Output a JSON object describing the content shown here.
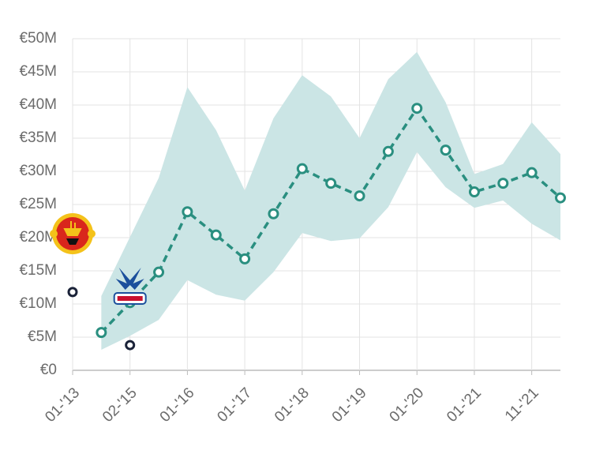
{
  "chart_data": {
    "type": "line",
    "categories": [
      "01-'13",
      null,
      "02-'15",
      null,
      "01-'16",
      null,
      "01-'17",
      null,
      "01-'18",
      null,
      "01-'19",
      null,
      "01-'20",
      null,
      "01-'21",
      null,
      "11-'21",
      null
    ],
    "ylim": [
      0,
      50
    ],
    "yticks": [
      {
        "value": 0,
        "label": "€0"
      },
      {
        "value": 5,
        "label": "€5M"
      },
      {
        "value": 10,
        "label": "€10M"
      },
      {
        "value": 15,
        "label": "€15M"
      },
      {
        "value": 20,
        "label": "€20M"
      },
      {
        "value": 25,
        "label": "€25M"
      },
      {
        "value": 30,
        "label": "€30M"
      },
      {
        "value": 35,
        "label": "€35M"
      },
      {
        "value": 40,
        "label": "€40M"
      },
      {
        "value": 45,
        "label": "€45M"
      },
      {
        "value": 50,
        "label": "€50M"
      }
    ],
    "grid": true,
    "series": [
      {
        "type": "band",
        "color": "#cbe5e5",
        "upper": [
          null,
          11.2,
          20.1,
          29.0,
          42.7,
          36.2,
          27.1,
          38.0,
          44.5,
          41.3,
          35.0,
          43.9,
          48.0,
          40.4,
          29.6,
          31.1,
          37.4,
          32.6
        ],
        "lower": [
          null,
          3.1,
          5.2,
          7.6,
          13.6,
          11.4,
          10.5,
          14.8,
          20.7,
          19.5,
          19.9,
          24.6,
          32.9,
          27.6,
          24.5,
          25.6,
          22.1,
          19.6
        ]
      },
      {
        "type": "line",
        "color": "#2a8f80",
        "values": [
          null,
          5.7,
          10.2,
          14.8,
          23.9,
          20.4,
          16.8,
          23.6,
          30.4,
          28.2,
          26.3,
          33.0,
          39.5,
          33.2,
          26.9,
          28.2,
          29.8,
          26.0
        ]
      },
      {
        "type": "scatter",
        "color": "#1a2238",
        "values": [
          11.8,
          null,
          3.8,
          null,
          null,
          null,
          null,
          null,
          null,
          null,
          null,
          null,
          null,
          null,
          null,
          null,
          null,
          null
        ]
      }
    ]
  }
}
